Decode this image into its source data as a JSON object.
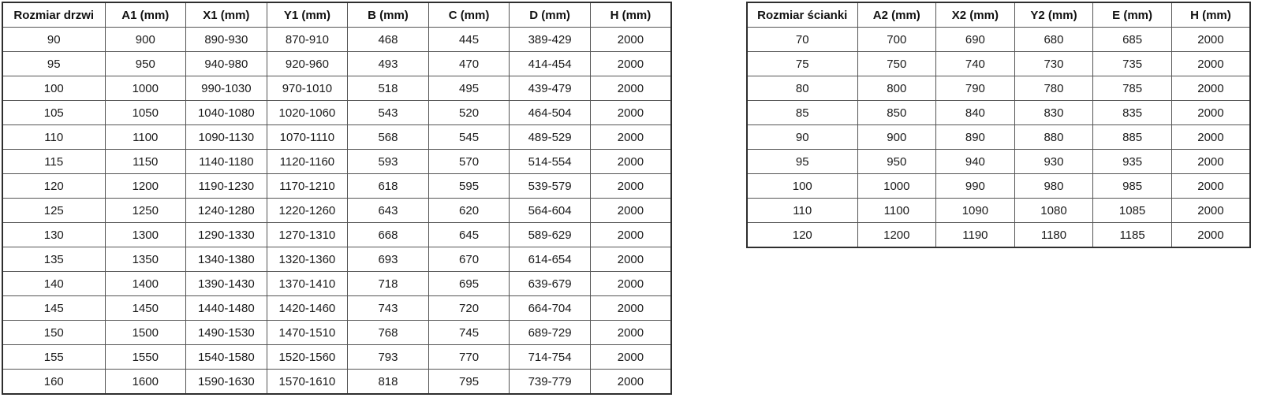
{
  "doors_table": {
    "headers": [
      "Rozmiar drzwi",
      "A1 (mm)",
      "X1 (mm)",
      "Y1 (mm)",
      "B (mm)",
      "C (mm)",
      "D (mm)",
      "H (mm)"
    ],
    "rows": [
      [
        "90",
        "900",
        "890-930",
        "870-910",
        "468",
        "445",
        "389-429",
        "2000"
      ],
      [
        "95",
        "950",
        "940-980",
        "920-960",
        "493",
        "470",
        "414-454",
        "2000"
      ],
      [
        "100",
        "1000",
        "990-1030",
        "970-1010",
        "518",
        "495",
        "439-479",
        "2000"
      ],
      [
        "105",
        "1050",
        "1040-1080",
        "1020-1060",
        "543",
        "520",
        "464-504",
        "2000"
      ],
      [
        "110",
        "1100",
        "1090-1130",
        "1070-1110",
        "568",
        "545",
        "489-529",
        "2000"
      ],
      [
        "115",
        "1150",
        "1140-1180",
        "1120-1160",
        "593",
        "570",
        "514-554",
        "2000"
      ],
      [
        "120",
        "1200",
        "1190-1230",
        "1170-1210",
        "618",
        "595",
        "539-579",
        "2000"
      ],
      [
        "125",
        "1250",
        "1240-1280",
        "1220-1260",
        "643",
        "620",
        "564-604",
        "2000"
      ],
      [
        "130",
        "1300",
        "1290-1330",
        "1270-1310",
        "668",
        "645",
        "589-629",
        "2000"
      ],
      [
        "135",
        "1350",
        "1340-1380",
        "1320-1360",
        "693",
        "670",
        "614-654",
        "2000"
      ],
      [
        "140",
        "1400",
        "1390-1430",
        "1370-1410",
        "718",
        "695",
        "639-679",
        "2000"
      ],
      [
        "145",
        "1450",
        "1440-1480",
        "1420-1460",
        "743",
        "720",
        "664-704",
        "2000"
      ],
      [
        "150",
        "1500",
        "1490-1530",
        "1470-1510",
        "768",
        "745",
        "689-729",
        "2000"
      ],
      [
        "155",
        "1550",
        "1540-1580",
        "1520-1560",
        "793",
        "770",
        "714-754",
        "2000"
      ],
      [
        "160",
        "1600",
        "1590-1630",
        "1570-1610",
        "818",
        "795",
        "739-779",
        "2000"
      ]
    ]
  },
  "walls_table": {
    "headers": [
      "Rozmiar ścianki",
      "A2 (mm)",
      "X2 (mm)",
      "Y2 (mm)",
      "E (mm)",
      "H (mm)"
    ],
    "rows": [
      [
        "70",
        "700",
        "690",
        "680",
        "685",
        "2000"
      ],
      [
        "75",
        "750",
        "740",
        "730",
        "735",
        "2000"
      ],
      [
        "80",
        "800",
        "790",
        "780",
        "785",
        "2000"
      ],
      [
        "85",
        "850",
        "840",
        "830",
        "835",
        "2000"
      ],
      [
        "90",
        "900",
        "890",
        "880",
        "885",
        "2000"
      ],
      [
        "95",
        "950",
        "940",
        "930",
        "935",
        "2000"
      ],
      [
        "100",
        "1000",
        "990",
        "980",
        "985",
        "2000"
      ],
      [
        "110",
        "1100",
        "1090",
        "1080",
        "1085",
        "2000"
      ],
      [
        "120",
        "1200",
        "1190",
        "1180",
        "1185",
        "2000"
      ]
    ]
  }
}
